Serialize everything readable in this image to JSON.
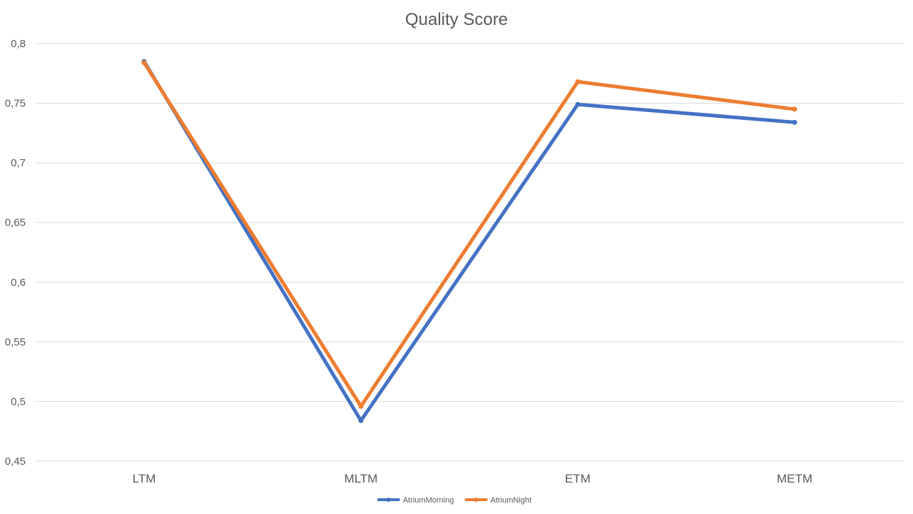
{
  "chart_data": {
    "type": "line",
    "title": "Quality Score",
    "categories": [
      "LTM",
      "MLTM",
      "ETM",
      "METM"
    ],
    "series": [
      {
        "name": "AtriumMorning",
        "values": [
          0.785,
          0.484,
          0.749,
          0.734
        ],
        "color": "#4472C4"
      },
      {
        "name": "AtriumNight",
        "values": [
          0.784,
          0.496,
          0.768,
          0.745
        ],
        "color": "#ED7D31"
      }
    ],
    "ylim": [
      0.45,
      0.8
    ],
    "yticks": [
      0.45,
      0.5,
      0.55,
      0.6,
      0.65,
      0.7,
      0.75,
      0.8
    ],
    "ytick_labels": [
      "0,45",
      "0,5",
      "0,55",
      "0,6",
      "0,65",
      "0,7",
      "0,75",
      "0,8"
    ],
    "xlabel": "",
    "ylabel": "",
    "grid": true,
    "legend_position": "bottom"
  }
}
